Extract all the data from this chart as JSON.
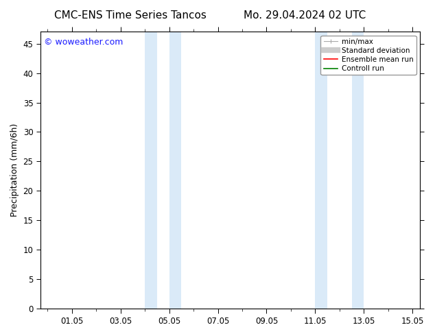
{
  "title_left": "CMC-ENS Time Series Tancos",
  "title_right": "Mo. 29.04.2024 02 UTC",
  "ylabel": "Precipitation (mm/6h)",
  "watermark": "© woweather.com",
  "watermark_color": "#1a1aff",
  "ylim": [
    0,
    47
  ],
  "yticks": [
    0,
    5,
    10,
    15,
    20,
    25,
    30,
    35,
    40,
    45
  ],
  "xtick_labels": [
    "01.05",
    "03.05",
    "05.05",
    "07.05",
    "09.05",
    "11.05",
    "13.05",
    "15.05"
  ],
  "xtick_positions": [
    1.0,
    3.0,
    5.0,
    7.0,
    9.0,
    11.0,
    13.0,
    15.0
  ],
  "shaded_regions": [
    {
      "x_start": 4.0,
      "x_end": 4.5
    },
    {
      "x_start": 5.0,
      "x_end": 5.5
    },
    {
      "x_start": 11.0,
      "x_end": 11.5
    },
    {
      "x_start": 12.5,
      "x_end": 13.0
    }
  ],
  "shade_color": "#daeaf8",
  "background_color": "#ffffff",
  "legend_min_max_color": "#aaaaaa",
  "legend_std_color": "#cccccc",
  "legend_mean_color": "#ff0000",
  "legend_ctrl_color": "#008000",
  "xlim_left": -0.3,
  "xlim_right": 15.3,
  "title_fontsize": 11,
  "axis_fontsize": 9,
  "tick_fontsize": 8.5,
  "watermark_fontsize": 9
}
